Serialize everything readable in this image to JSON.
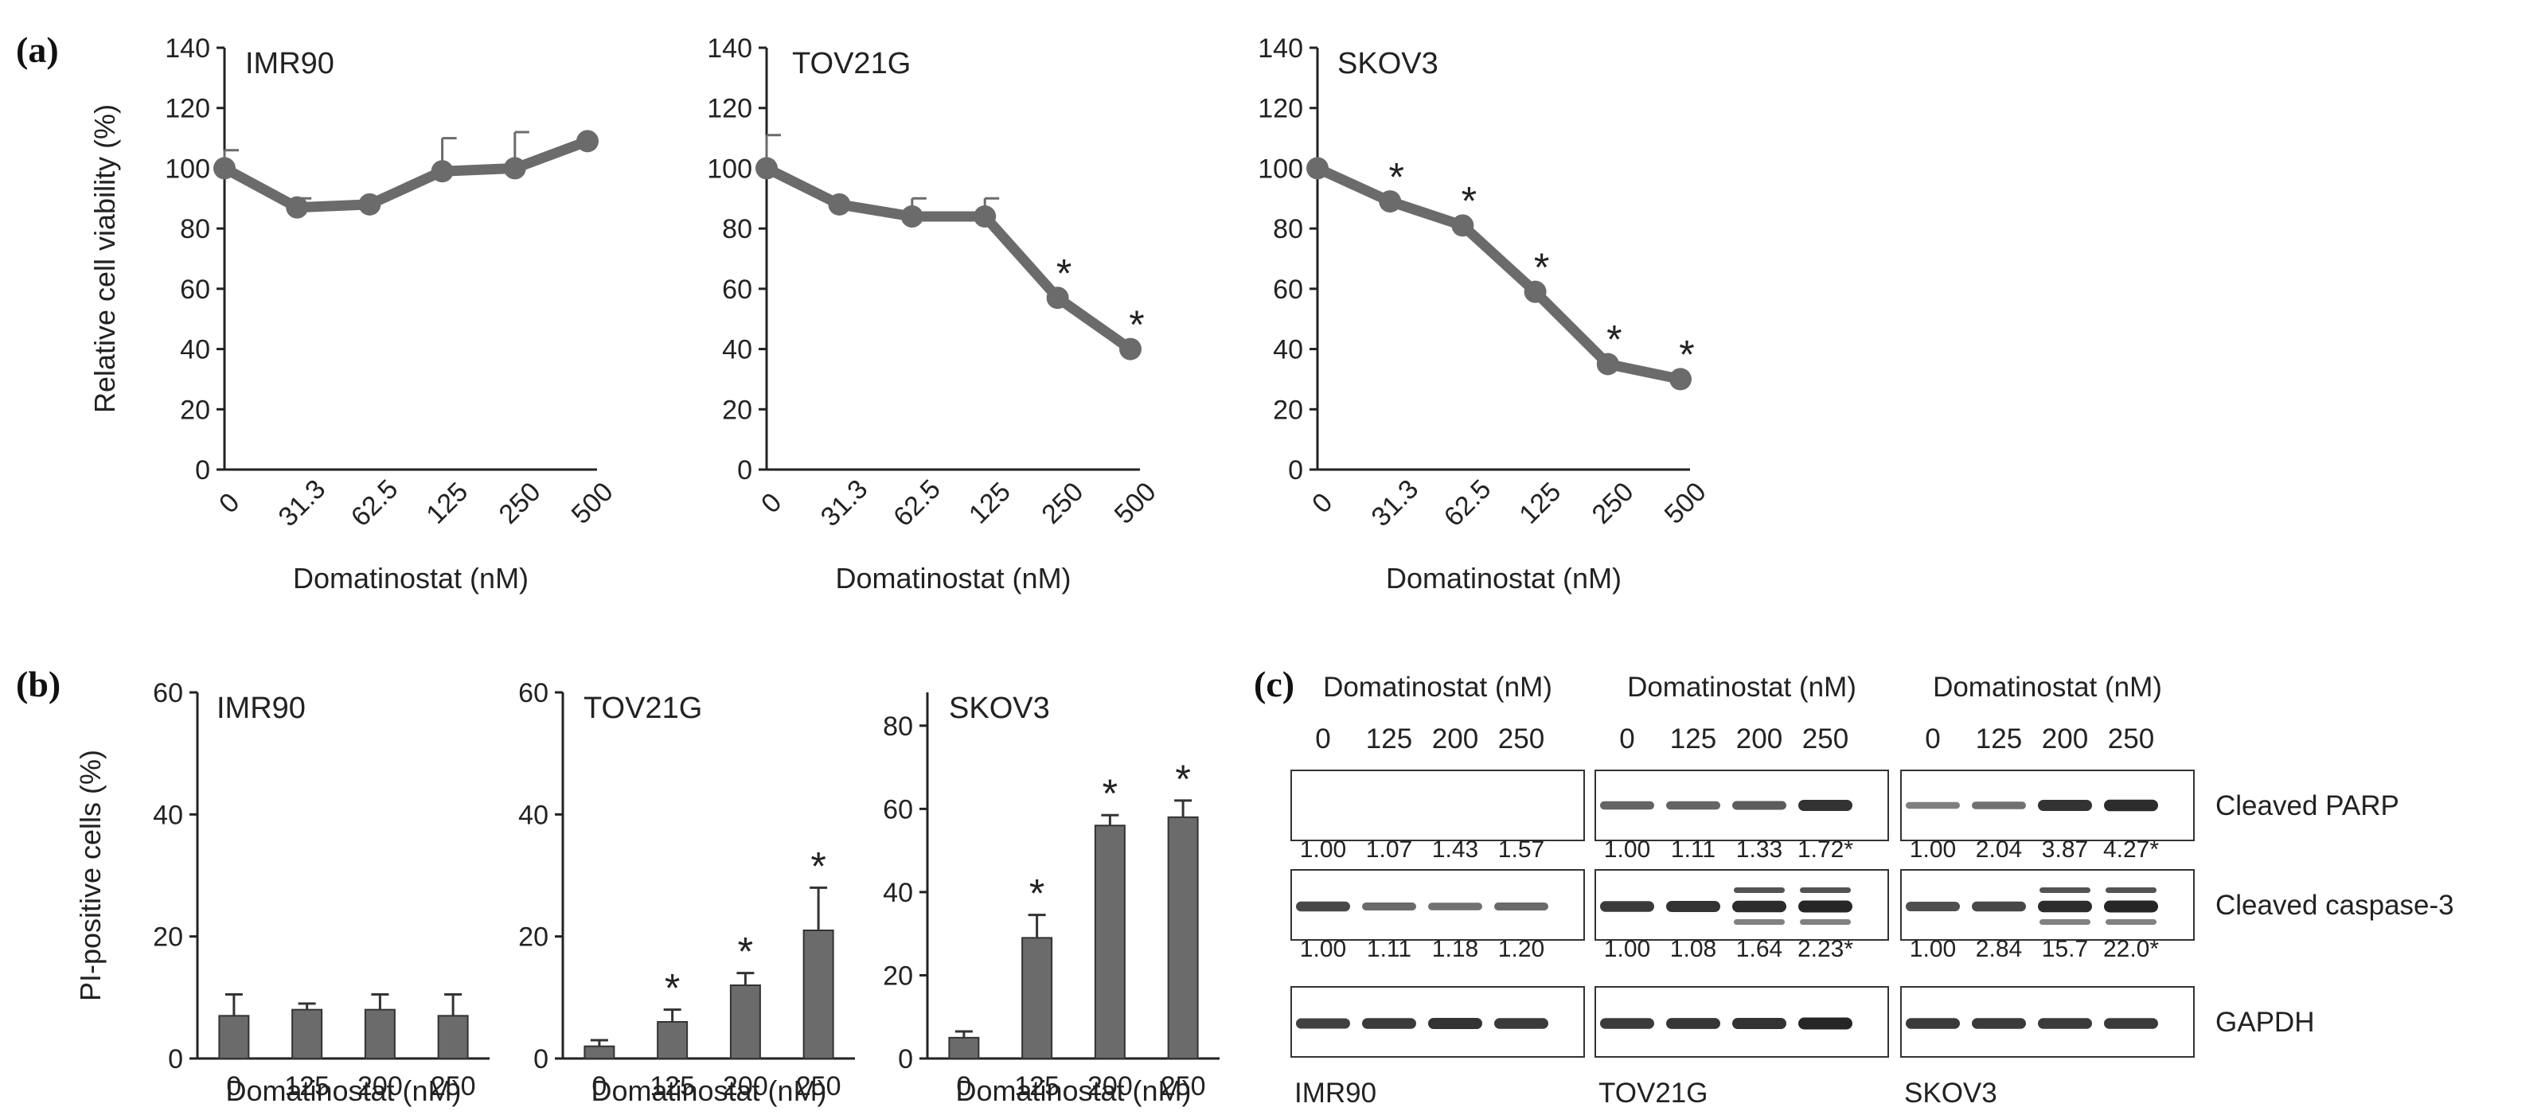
{
  "panels": {
    "a": "(a)",
    "b": "(b)",
    "c": "(c)"
  },
  "chart_data": [
    {
      "id": "a-IMR90",
      "type": "line",
      "title": "IMR90",
      "categories": [
        "0",
        "31.3",
        "62.5",
        "125",
        "250",
        "500"
      ],
      "values": [
        100,
        87,
        88,
        99,
        100,
        109
      ],
      "errors": [
        6,
        3,
        2,
        11,
        12,
        1
      ],
      "significant": [
        false,
        false,
        false,
        false,
        false,
        false
      ],
      "xlabel": "Domatinostat (nM)",
      "ylabel": "Relative cell viability (%)",
      "ylim": [
        0,
        140
      ],
      "yticks": [
        0,
        20,
        40,
        60,
        80,
        100,
        120,
        140
      ]
    },
    {
      "id": "a-TOV21G",
      "type": "line",
      "title": "TOV21G",
      "categories": [
        "0",
        "31.3",
        "62.5",
        "125",
        "250",
        "500"
      ],
      "values": [
        100,
        88,
        84,
        84,
        57,
        40
      ],
      "errors": [
        11,
        1,
        6,
        6,
        1,
        1
      ],
      "significant": [
        false,
        false,
        false,
        false,
        true,
        true
      ],
      "xlabel": "Domatinostat (nM)",
      "ylabel": "",
      "ylim": [
        0,
        140
      ],
      "yticks": [
        0,
        20,
        40,
        60,
        80,
        100,
        120,
        140
      ]
    },
    {
      "id": "a-SKOV3",
      "type": "line",
      "title": "SKOV3",
      "categories": [
        "0",
        "31.3",
        "62.5",
        "125",
        "250",
        "500"
      ],
      "values": [
        100,
        89,
        81,
        59,
        35,
        30
      ],
      "errors": [
        1,
        1,
        1,
        1,
        1,
        1
      ],
      "significant": [
        false,
        true,
        true,
        true,
        true,
        true
      ],
      "xlabel": "Domatinostat (nM)",
      "ylabel": "",
      "ylim": [
        0,
        140
      ],
      "yticks": [
        0,
        20,
        40,
        60,
        80,
        100,
        120,
        140
      ]
    },
    {
      "id": "b-IMR90",
      "type": "bar",
      "title": "IMR90",
      "categories": [
        "0",
        "125",
        "200",
        "250"
      ],
      "values": [
        7,
        8,
        8,
        7
      ],
      "errors": [
        3.5,
        1,
        2.5,
        3.5
      ],
      "significant": [
        false,
        false,
        false,
        false
      ],
      "xlabel": "Domatinostat (nM)",
      "ylabel": "PI-positive cells (%)",
      "ylim": [
        0,
        60
      ],
      "yticks": [
        0,
        20,
        40,
        60
      ]
    },
    {
      "id": "b-TOV21G",
      "type": "bar",
      "title": "TOV21G",
      "categories": [
        "0",
        "125",
        "200",
        "250"
      ],
      "values": [
        2,
        6,
        12,
        21
      ],
      "errors": [
        1,
        2,
        2,
        7
      ],
      "significant": [
        false,
        true,
        true,
        true
      ],
      "xlabel": "Domatinostat (nM)",
      "ylabel": "",
      "ylim": [
        0,
        60
      ],
      "yticks": [
        0,
        20,
        40,
        60
      ]
    },
    {
      "id": "b-SKOV3",
      "type": "bar",
      "title": "SKOV3",
      "categories": [
        "0",
        "125",
        "200",
        "250"
      ],
      "values": [
        5,
        29,
        56,
        58
      ],
      "errors": [
        1.5,
        5.5,
        2.5,
        4
      ],
      "significant": [
        false,
        true,
        true,
        true
      ],
      "xlabel": "Domatinostat (nM)",
      "ylabel": "",
      "ylim": [
        0,
        88
      ],
      "yticks": [
        0,
        20,
        40,
        60,
        80
      ]
    }
  ],
  "western_blot": {
    "header": "Domatinostat (nM)",
    "lanes": [
      "0",
      "125",
      "200",
      "250"
    ],
    "bands": [
      "Cleaved PARP",
      "Cleaved caspase-3",
      "GAPDH"
    ],
    "cell_lines": [
      {
        "name": "IMR90",
        "parp_quant": [
          "1.00",
          "1.07",
          "1.43",
          "1.57"
        ],
        "casp3_quant": [
          "1.00",
          "1.11",
          "1.18",
          "1.20"
        ],
        "intensity": [
          [
            0,
            0,
            0,
            0
          ],
          [
            0.75,
            0.5,
            0.45,
            0.5
          ],
          [
            0.8,
            0.85,
            0.9,
            0.85
          ]
        ]
      },
      {
        "name": "TOV21G",
        "parp_quant": [
          "1.00",
          "1.11",
          "1.33",
          "1.72*"
        ],
        "casp3_quant": [
          "1.00",
          "1.08",
          "1.64",
          "2.23*"
        ],
        "intensity": [
          [
            0.55,
            0.55,
            0.6,
            0.9
          ],
          [
            0.85,
            0.9,
            0.95,
            1.0
          ],
          [
            0.85,
            0.88,
            0.9,
            1.0
          ]
        ]
      },
      {
        "name": "SKOV3",
        "parp_quant": [
          "1.00",
          "2.04",
          "3.87",
          "4.27*"
        ],
        "casp3_quant": [
          "1.00",
          "2.84",
          "15.7",
          "22.0*"
        ],
        "intensity": [
          [
            0.35,
            0.45,
            0.9,
            0.95
          ],
          [
            0.7,
            0.75,
            0.95,
            1.0
          ],
          [
            0.85,
            0.85,
            0.85,
            0.85
          ]
        ]
      }
    ]
  },
  "colors": {
    "series": "#6b6b6b",
    "axis": "#222222",
    "band": "#1a1a1a",
    "background": "#ffffff"
  }
}
